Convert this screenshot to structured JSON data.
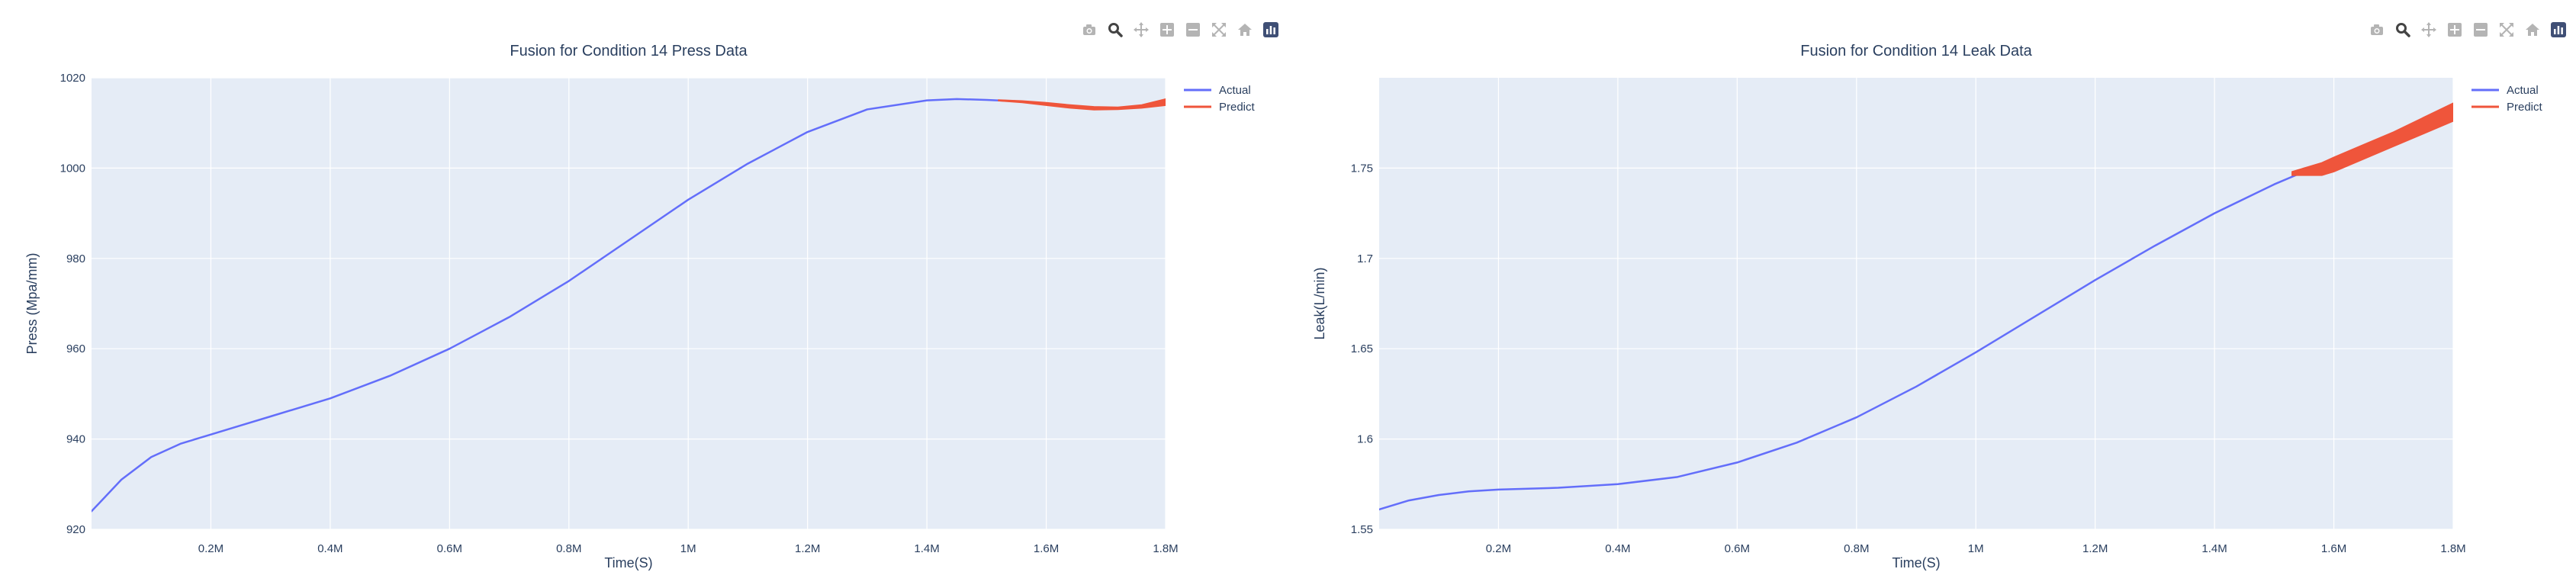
{
  "modebar": {
    "buttons": [
      {
        "icon": "camera-icon",
        "label": "Download plot as a png"
      },
      {
        "icon": "zoom-icon",
        "label": "Zoom"
      },
      {
        "icon": "pan-icon",
        "label": "Pan"
      },
      {
        "icon": "zoom-in-icon",
        "label": "Zoom in"
      },
      {
        "icon": "zoom-out-icon",
        "label": "Zoom out"
      },
      {
        "icon": "autoscale-icon",
        "label": "Autoscale"
      },
      {
        "icon": "home-icon",
        "label": "Reset axes"
      },
      {
        "icon": "plotly-logo-icon",
        "label": "Produced with Plotly"
      }
    ],
    "active_color": "#444444",
    "inactive_color": "#b4b4b4",
    "logo_color": "#3f4f75"
  },
  "colors": {
    "plot_bg": "#e5ecf6",
    "grid": "#ffffff",
    "text": "#2a3f5f",
    "actual": "#636efa",
    "predict": "#ef553b"
  },
  "chart_data": [
    {
      "type": "line",
      "title": "Fusion for Condition 14 Press Data",
      "xlabel": "Time(S)",
      "ylabel": "Press (Mpa/mm)",
      "xlim": [
        0,
        1.8
      ],
      "ylim": [
        920,
        1020
      ],
      "x_ticks": [
        0.2,
        0.4,
        0.6,
        0.8,
        1.0,
        1.2,
        1.4,
        1.6,
        1.8
      ],
      "x_tick_labels": [
        "0.2M",
        "0.4M",
        "0.6M",
        "0.8M",
        "1M",
        "1.2M",
        "1.4M",
        "1.6M",
        "1.8M"
      ],
      "y_ticks": [
        920,
        940,
        960,
        980,
        1000,
        1020
      ],
      "y_tick_labels": [
        "920",
        "940",
        "960",
        "980",
        "1000",
        "1020"
      ],
      "grid": true,
      "legend_position": "top-right",
      "series": [
        {
          "name": "Actual",
          "color": "#636efa",
          "x": [
            0.0,
            0.05,
            0.1,
            0.15,
            0.2,
            0.25,
            0.3,
            0.4,
            0.5,
            0.6,
            0.7,
            0.8,
            0.9,
            1.0,
            1.1,
            1.2,
            1.3,
            1.4,
            1.45,
            1.5,
            1.55
          ],
          "y": [
            924,
            931,
            936,
            939,
            941,
            943,
            945,
            949,
            954,
            960,
            967,
            975,
            984,
            993,
            1001,
            1008,
            1013,
            1015,
            1015.3,
            1015.1,
            1014.8
          ]
        },
        {
          "name": "Predict",
          "color": "#ef553b",
          "x": [
            1.52,
            1.56,
            1.6,
            1.64,
            1.68,
            1.72,
            1.76,
            1.8
          ],
          "y_upper": [
            1015.1,
            1014.9,
            1014.5,
            1014.0,
            1013.6,
            1013.5,
            1014.0,
            1015.3
          ],
          "y_lower": [
            1014.9,
            1014.5,
            1013.9,
            1013.3,
            1012.9,
            1013.0,
            1013.3,
            1013.9
          ]
        }
      ]
    },
    {
      "type": "line",
      "title": "Fusion for Condition 14 Leak Data",
      "xlabel": "Time(S)",
      "ylabel": "Leak(L/min)",
      "xlim": [
        0,
        1.8
      ],
      "ylim": [
        1.55,
        1.8
      ],
      "x_ticks": [
        0.2,
        0.4,
        0.6,
        0.8,
        1.0,
        1.2,
        1.4,
        1.6,
        1.8
      ],
      "x_tick_labels": [
        "0.2M",
        "0.4M",
        "0.6M",
        "0.8M",
        "1M",
        "1.2M",
        "1.4M",
        "1.6M",
        "1.8M"
      ],
      "y_ticks": [
        1.55,
        1.6,
        1.65,
        1.7,
        1.75
      ],
      "y_tick_labels": [
        "1.55",
        "1.6",
        "1.65",
        "1.7",
        "1.75"
      ],
      "grid": true,
      "legend_position": "top-right",
      "series": [
        {
          "name": "Actual",
          "color": "#636efa",
          "x": [
            0.0,
            0.05,
            0.1,
            0.15,
            0.2,
            0.3,
            0.4,
            0.5,
            0.6,
            0.7,
            0.8,
            0.9,
            1.0,
            1.1,
            1.2,
            1.3,
            1.4,
            1.5,
            1.55
          ],
          "y": [
            1.561,
            1.566,
            1.569,
            1.571,
            1.572,
            1.573,
            1.575,
            1.579,
            1.587,
            1.598,
            1.612,
            1.629,
            1.648,
            1.668,
            1.688,
            1.707,
            1.725,
            1.741,
            1.748
          ]
        },
        {
          "name": "Predict",
          "color": "#ef553b",
          "x": [
            1.53,
            1.55,
            1.58,
            1.6,
            1.65,
            1.7,
            1.75,
            1.8
          ],
          "y_upper": [
            1.748,
            1.75,
            1.753,
            1.756,
            1.763,
            1.77,
            1.778,
            1.786
          ],
          "y_lower": [
            1.746,
            1.746,
            1.746,
            1.748,
            1.755,
            1.762,
            1.769,
            1.776
          ]
        }
      ]
    }
  ]
}
